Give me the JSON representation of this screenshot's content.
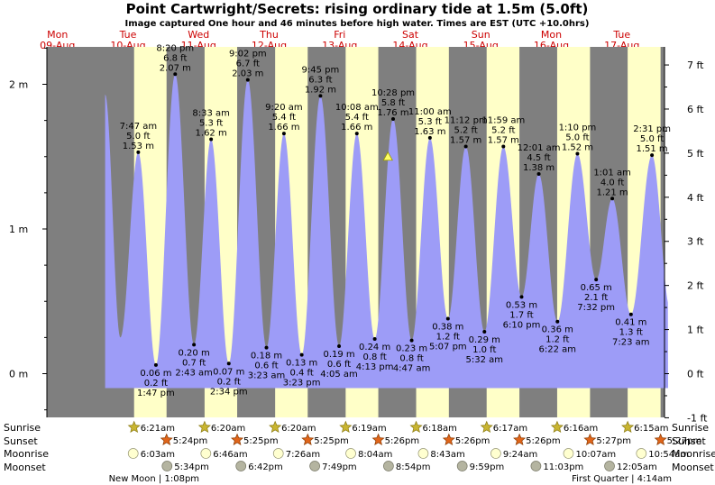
{
  "chart_data": {
    "type": "area",
    "title": "Point Cartwright/Secrets: rising  ordinary tide at 1.5m (5.0ft)",
    "subtitle": "Image captured One hour and 46 minutes before high water. Times are EST (UTC +10.0hrs)",
    "left_axis": {
      "unit_suffix": " m",
      "ticks": [
        0,
        1,
        2
      ],
      "range": [
        -0.2,
        2.3
      ]
    },
    "right_axis": {
      "unit_suffix": " ft",
      "ticks": [
        -1,
        0,
        1,
        2,
        3,
        4,
        5,
        6,
        7
      ],
      "range": [
        -0.66,
        7.55
      ]
    },
    "colors": {
      "night": "#7f7f7f",
      "day": "#ffffc8",
      "tide": "#9d9cf7",
      "text": "#000000",
      "date_label": "#cc0000",
      "sun": "#c9b531",
      "sunset": "#e0651a",
      "moon_rise": "#ffffd0",
      "moon_set": "#b4b4a0"
    },
    "days": [
      {
        "dow": "Mon",
        "date": "09-Aug"
      },
      {
        "dow": "Tue",
        "date": "10-Aug"
      },
      {
        "dow": "Wed",
        "date": "11-Aug"
      },
      {
        "dow": "Thu",
        "date": "12-Aug"
      },
      {
        "dow": "Fri",
        "date": "13-Aug"
      },
      {
        "dow": "Sat",
        "date": "14-Aug"
      },
      {
        "dow": "Sun",
        "date": "15-Aug"
      },
      {
        "dow": "Mon",
        "date": "16-Aug"
      },
      {
        "dow": "Tue",
        "date": "17-Aug"
      }
    ],
    "tide_extremes": [
      {
        "t": 31.78,
        "m": 1.53,
        "time": "7:47 am",
        "ft": "5.0 ft",
        "mtxt": "1.53 m",
        "kind": "high"
      },
      {
        "t": 37.78,
        "m": 0.06,
        "time": "1:47 pm",
        "ft": "0.2 ft",
        "mtxt": "0.06 m",
        "kind": "low"
      },
      {
        "t": 44.33,
        "m": 2.07,
        "time": "8:20 pm",
        "ft": "6.8 ft",
        "mtxt": "2.07 m",
        "kind": "high"
      },
      {
        "t": 50.72,
        "m": 0.2,
        "time": "2:43 am",
        "ft": "0.7 ft",
        "mtxt": "0.20 m",
        "kind": "low"
      },
      {
        "t": 56.55,
        "m": 1.62,
        "time": "8:33 am",
        "ft": "5.3 ft",
        "mtxt": "1.62 m",
        "kind": "high"
      },
      {
        "t": 62.57,
        "m": 0.07,
        "time": "2:34 pm",
        "ft": "0.2 ft",
        "mtxt": "0.07 m",
        "kind": "low"
      },
      {
        "t": 69.03,
        "m": 2.03,
        "time": "9:02 pm",
        "ft": "6.7 ft",
        "mtxt": "2.03 m",
        "kind": "high"
      },
      {
        "t": 75.38,
        "m": 0.18,
        "time": "3:23 am",
        "ft": "0.6 ft",
        "mtxt": "0.18 m",
        "kind": "low"
      },
      {
        "t": 81.33,
        "m": 1.66,
        "time": "9:20 am",
        "ft": "5.4 ft",
        "mtxt": "1.66 m",
        "kind": "high"
      },
      {
        "t": 87.38,
        "m": 0.13,
        "time": "3:23 pm",
        "ft": "0.4 ft",
        "mtxt": "0.13 m",
        "kind": "low"
      },
      {
        "t": 93.75,
        "m": 1.92,
        "time": "9:45 pm",
        "ft": "6.3 ft",
        "mtxt": "1.92 m",
        "kind": "high"
      },
      {
        "t": 100.08,
        "m": 0.19,
        "time": "4:05 am",
        "ft": "0.6 ft",
        "mtxt": "0.19 m",
        "kind": "low"
      },
      {
        "t": 106.13,
        "m": 1.66,
        "time": "10:08 am",
        "ft": "5.4 ft",
        "mtxt": "1.66 m",
        "kind": "high"
      },
      {
        "t": 112.22,
        "m": 0.24,
        "time": "4:13 pm",
        "ft": "0.8 ft",
        "mtxt": "0.24 m",
        "kind": "low"
      },
      {
        "t": 118.47,
        "m": 1.76,
        "time": "10:28 pm",
        "ft": "5.8 ft",
        "mtxt": "1.76 m",
        "kind": "high"
      },
      {
        "t": 124.78,
        "m": 0.23,
        "time": "4:47 am",
        "ft": "0.8 ft",
        "mtxt": "0.23 m",
        "kind": "low"
      },
      {
        "t": 131.0,
        "m": 1.63,
        "time": "11:00 am",
        "ft": "5.3 ft",
        "mtxt": "1.63 m",
        "kind": "high"
      },
      {
        "t": 137.12,
        "m": 0.38,
        "time": "5:07 pm",
        "ft": "1.2 ft",
        "mtxt": "0.38 m",
        "kind": "low"
      },
      {
        "t": 143.2,
        "m": 1.57,
        "time": "11:12 pm",
        "ft": "5.2 ft",
        "mtxt": "1.57 m",
        "kind": "high"
      },
      {
        "t": 149.53,
        "m": 0.29,
        "time": "5:32 am",
        "ft": "1.0 ft",
        "mtxt": "0.29 m",
        "kind": "low"
      },
      {
        "t": 155.98,
        "m": 1.57,
        "time": "11:59 am",
        "ft": "5.2 ft",
        "mtxt": "1.57 m",
        "kind": "high"
      },
      {
        "t": 162.17,
        "m": 0.53,
        "time": "6:10 pm",
        "ft": "1.7 ft",
        "mtxt": "0.53 m",
        "kind": "low"
      },
      {
        "t": 168.02,
        "m": 1.38,
        "time": "12:01 am",
        "ft": "4.5 ft",
        "mtxt": "1.38 m",
        "kind": "high"
      },
      {
        "t": 174.37,
        "m": 0.36,
        "time": "6:22 am",
        "ft": "1.2 ft",
        "mtxt": "0.36 m",
        "kind": "low"
      },
      {
        "t": 181.17,
        "m": 1.52,
        "time": "1:10 pm",
        "ft": "5.0 ft",
        "mtxt": "1.52 m",
        "kind": "high"
      },
      {
        "t": 187.53,
        "m": 0.65,
        "time": "7:32 pm",
        "ft": "2.1 ft",
        "mtxt": "0.65 m",
        "kind": "low"
      },
      {
        "t": 193.02,
        "m": 1.21,
        "time": "1:01 am",
        "ft": "4.0 ft",
        "mtxt": "1.21 m",
        "kind": "high"
      },
      {
        "t": 199.38,
        "m": 0.41,
        "time": "7:23 am",
        "ft": "1.3 ft",
        "mtxt": "0.41 m",
        "kind": "low"
      },
      {
        "t": 206.52,
        "m": 1.51,
        "time": "2:31 pm",
        "ft": "5.0 ft",
        "mtxt": "1.51 m",
        "kind": "high"
      }
    ],
    "current_tide_m": 1.5,
    "sunrise": [
      "6:21am",
      "6:20am",
      "6:20am",
      "6:19am",
      "6:18am",
      "6:17am",
      "6:16am",
      "6:15am"
    ],
    "sunset": [
      "5:24pm",
      "5:25pm",
      "5:25pm",
      "5:26pm",
      "5:26pm",
      "5:26pm",
      "5:27pm",
      "5:27pm"
    ],
    "moonrise": [
      "6:03am",
      "6:46am",
      "7:26am",
      "8:04am",
      "8:43am",
      "9:24am",
      "10:07am",
      "10:54am"
    ],
    "moonset": [
      "5:34pm",
      "6:42pm",
      "7:49pm",
      "8:54pm",
      "9:59pm",
      "11:03pm",
      "12:05am"
    ],
    "row_labels": {
      "sunrise": "Sunrise",
      "sunset": "Sunset",
      "moonrise": "Moonrise",
      "moonset": "Moonset"
    },
    "moon_phases": [
      {
        "t": 37.13,
        "label": "New Moon | 1:08pm"
      },
      {
        "t": 196.23,
        "label": "First Quarter | 4:14am"
      }
    ]
  }
}
